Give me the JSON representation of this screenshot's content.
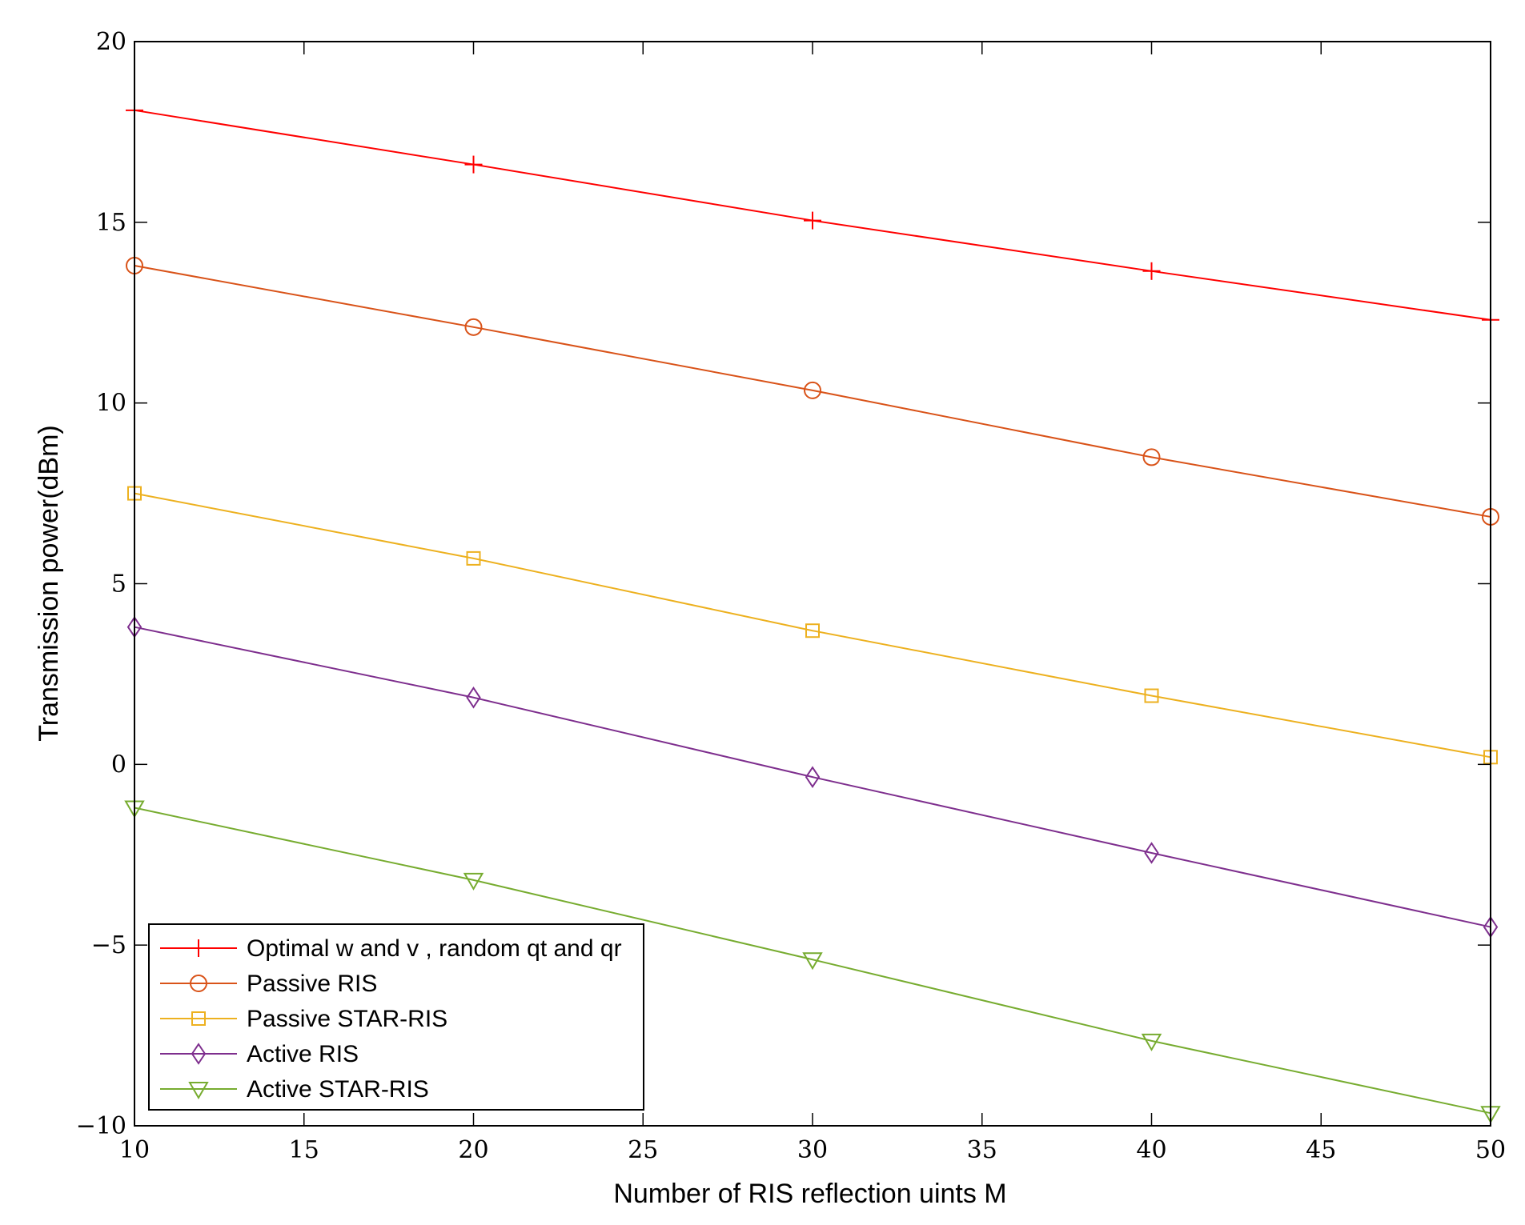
{
  "chart_data": {
    "type": "line",
    "xlabel": "Number of RIS reflection uints M",
    "ylabel": "Transmission power(dBm)",
    "xlim": [
      10,
      50
    ],
    "ylim": [
      -10,
      20
    ],
    "xticks": [
      10,
      15,
      20,
      25,
      30,
      35,
      40,
      45,
      50
    ],
    "yticks": [
      -10,
      -5,
      0,
      5,
      10,
      15,
      20
    ],
    "ytick_labels": [
      "−10",
      "−5",
      "0",
      "5",
      "10",
      "15",
      "20"
    ],
    "grid": false,
    "legend_position": "bottom-left",
    "x": [
      10,
      20,
      30,
      40,
      50
    ],
    "series": [
      {
        "name": "Optimal w and v , random qt and qr",
        "marker": "plus",
        "color": "#ff0000",
        "values": [
          18.1,
          16.6,
          15.05,
          13.65,
          12.3
        ]
      },
      {
        "name": "Passive RIS",
        "marker": "circle",
        "color": "#d95319",
        "values": [
          13.8,
          12.1,
          10.35,
          8.5,
          6.85
        ]
      },
      {
        "name": "Passive STAR-RIS",
        "marker": "square",
        "color": "#edb120",
        "values": [
          7.5,
          5.7,
          3.7,
          1.9,
          0.2
        ]
      },
      {
        "name": "Active RIS",
        "marker": "diamond",
        "color": "#7e2f8e",
        "values": [
          3.8,
          1.85,
          -0.35,
          -2.45,
          -4.5
        ]
      },
      {
        "name": "Active STAR-RIS",
        "marker": "triangle-down",
        "color": "#77ac30",
        "values": [
          -1.2,
          -3.2,
          -5.4,
          -7.65,
          -9.65
        ]
      }
    ]
  }
}
